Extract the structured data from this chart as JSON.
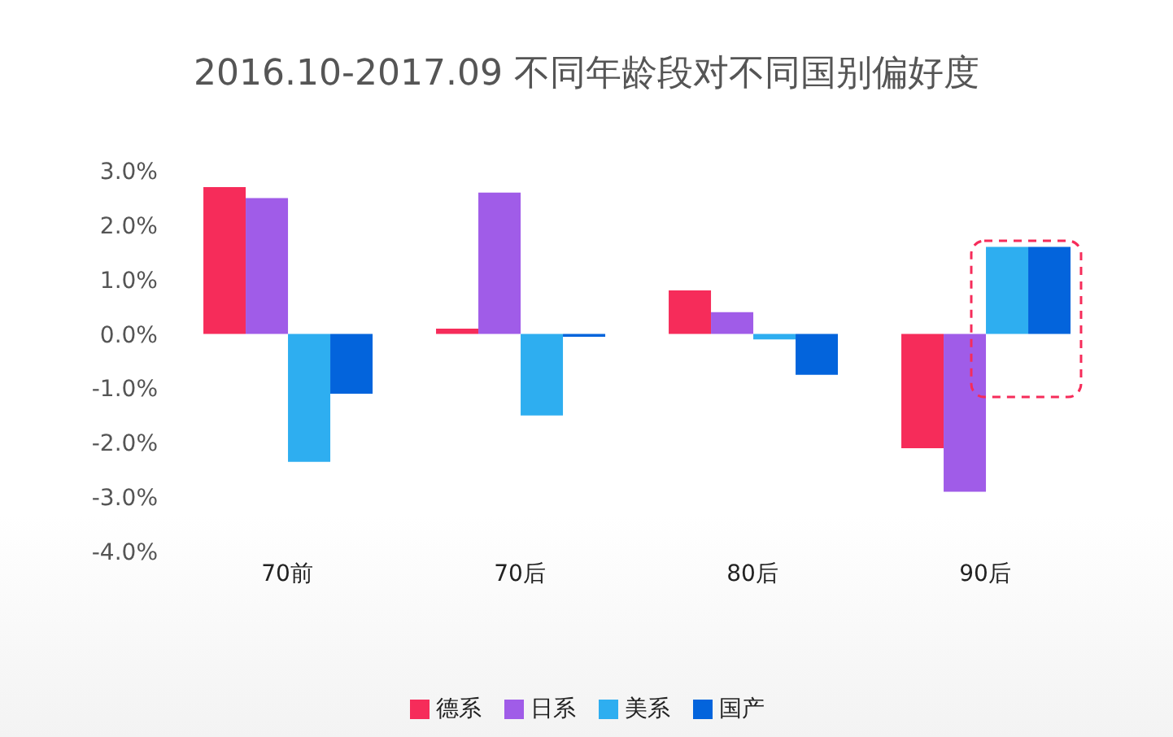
{
  "chart_data": {
    "type": "bar",
    "title": "2016.10-2017.09  不同年龄段对不同国别偏好度",
    "categories": [
      "70前",
      "70后",
      "80后",
      "90后"
    ],
    "series": [
      {
        "name": "德系",
        "color": "#f62c5a",
        "values": [
          2.7,
          0.1,
          0.8,
          -2.1
        ]
      },
      {
        "name": "日系",
        "color": "#a05ce8",
        "values": [
          2.5,
          2.6,
          0.4,
          -2.9
        ]
      },
      {
        "name": "美系",
        "color": "#2eaef0",
        "values": [
          -2.35,
          -1.5,
          -0.1,
          1.6
        ]
      },
      {
        "name": "国产",
        "color": "#0364dc",
        "values": [
          -1.1,
          -0.05,
          -0.75,
          1.6
        ]
      }
    ],
    "ylim": [
      -4,
      3
    ],
    "yticks": [
      {
        "value": 3,
        "label": "3.0%"
      },
      {
        "value": 2,
        "label": "2.0%"
      },
      {
        "value": 1,
        "label": "1.0%"
      },
      {
        "value": 0,
        "label": "0.0%"
      },
      {
        "value": -1,
        "label": "-1.0%"
      },
      {
        "value": -2,
        "label": "-2.0%"
      },
      {
        "value": -3,
        "label": "-3.0%"
      },
      {
        "value": -4,
        "label": "-4.0%"
      }
    ],
    "grid": false,
    "legend": "bottom"
  }
}
